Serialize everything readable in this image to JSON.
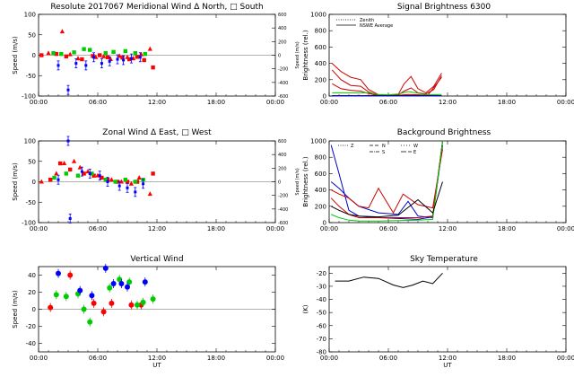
{
  "chart_data": [
    {
      "id": "meridional",
      "type": "scatter",
      "title": "Resolute  2017067    Meridional Wind   Δ North, □ South",
      "ylabel": "Speed (m/s)",
      "y2label": "Speed (m/s)",
      "xlim": [
        0,
        24
      ],
      "ylim": [
        -100,
        100
      ],
      "y2lim": [
        -600,
        600
      ],
      "x_ticks": [
        "00:00",
        "06:00",
        "12:00",
        "18:00",
        "00:00"
      ],
      "y_ticks": [
        -100,
        -50,
        0,
        50,
        100
      ],
      "y2_ticks": [
        -600,
        -400,
        -200,
        0,
        200,
        400,
        600
      ],
      "grid": false,
      "series": [
        {
          "name": "North",
          "color": "#ff0000",
          "marker": "triangle",
          "x": [
            1.0,
            2.4,
            3.2,
            4.0,
            5.8,
            6.6,
            7.3,
            8.2,
            9.0,
            9.6,
            10.4,
            11.3
          ],
          "y": [
            5,
            58,
            2,
            -8,
            -5,
            -3,
            -10,
            -2,
            -5,
            -8,
            2,
            15
          ]
        },
        {
          "name": "South",
          "color": "#ff0000",
          "marker": "square",
          "x": [
            0.3,
            1.8,
            2.8,
            4.4,
            5.5,
            6.2,
            7.0,
            8.5,
            9.2,
            10.0,
            10.7,
            11.6
          ],
          "y": [
            0,
            3,
            -3,
            -10,
            -2,
            0,
            -5,
            -6,
            -10,
            -4,
            -12,
            -30
          ]
        },
        {
          "name": "zenith-green",
          "color": "#00cc00",
          "marker": "square",
          "x": [
            1.5,
            2.3,
            3.6,
            4.6,
            5.2,
            6.8,
            7.6,
            8.8,
            9.8,
            10.8
          ],
          "y": [
            5,
            3,
            7,
            15,
            13,
            5,
            8,
            10,
            5,
            3
          ]
        },
        {
          "name": "model-blue",
          "color": "#0000ff",
          "marker": "errbar",
          "x": [
            2.0,
            3.0,
            3.8,
            4.8,
            5.6,
            6.4,
            7.2,
            8.0,
            8.6,
            9.4,
            10.3
          ],
          "y": [
            -25,
            -85,
            -20,
            -25,
            -5,
            -20,
            -15,
            -10,
            -12,
            -8,
            -5
          ]
        }
      ]
    },
    {
      "id": "signal",
      "type": "line",
      "title": "Signal Brightness        6300",
      "ylabel": "Brightness (rel.)",
      "xlim": [
        0,
        24
      ],
      "ylim": [
        0,
        1000
      ],
      "x_ticks": [
        "00:00",
        "06:00",
        "12:00",
        "18:00",
        "00:00"
      ],
      "y_ticks": [
        0,
        200,
        400,
        600,
        800,
        1000
      ],
      "grid": false,
      "legend": [
        "Zenith",
        "NSWE Average"
      ],
      "series": [
        {
          "name": "red-1",
          "color": "#cc0000",
          "x": [
            0.3,
            1.2,
            2.2,
            3.2,
            4.0,
            5.0,
            6.0,
            7.0,
            7.6,
            8.3,
            9.0,
            9.8,
            10.6,
            11.4
          ],
          "y": [
            400,
            300,
            230,
            200,
            80,
            15,
            10,
            20,
            150,
            240,
            90,
            40,
            120,
            280
          ]
        },
        {
          "name": "red-2",
          "color": "#cc0000",
          "x": [
            0.3,
            1.2,
            2.2,
            3.2,
            4.0,
            5.0,
            6.0,
            7.0,
            7.6,
            8.3,
            9.0,
            9.8,
            10.6,
            11.4
          ],
          "y": [
            320,
            200,
            130,
            120,
            50,
            10,
            8,
            15,
            60,
            100,
            40,
            25,
            80,
            250
          ]
        },
        {
          "name": "red-3",
          "color": "#cc0000",
          "x": [
            0.3,
            1.2,
            2.2,
            3.2,
            4.0,
            5.0,
            6.0,
            7.0,
            8.0,
            9.0,
            10.0,
            11.4
          ],
          "y": [
            150,
            90,
            70,
            60,
            30,
            5,
            5,
            10,
            20,
            15,
            10,
            230
          ]
        },
        {
          "name": "green",
          "color": "#00cc00",
          "x": [
            0.3,
            2.0,
            4.0,
            5.0,
            6.0,
            7.0,
            8.0,
            9.0,
            10.0,
            11.4
          ],
          "y": [
            40,
            40,
            40,
            20,
            15,
            25,
            55,
            35,
            15,
            20
          ]
        },
        {
          "name": "blue",
          "color": "#0000cc",
          "x": [
            0.3,
            3.0,
            5.0,
            7.0,
            9.0,
            11.4
          ],
          "y": [
            5,
            5,
            5,
            5,
            5,
            5
          ]
        }
      ]
    },
    {
      "id": "zonal",
      "type": "scatter",
      "title": "Zonal Wind      Δ East, □ West",
      "ylabel": "Speed (m/s)",
      "y2label": "Speed (m/s)",
      "xlim": [
        0,
        24
      ],
      "ylim": [
        -100,
        100
      ],
      "y2lim": [
        -600,
        600
      ],
      "x_ticks": [
        "00:00",
        "06:00",
        "12:00",
        "18:00",
        "00:00"
      ],
      "y_ticks": [
        -100,
        -50,
        0,
        50,
        100
      ],
      "y2_ticks": [
        -600,
        -400,
        -200,
        0,
        200,
        400,
        600
      ],
      "grid": false,
      "series": [
        {
          "name": "East",
          "color": "#ff0000",
          "marker": "triangle",
          "x": [
            0.3,
            1.8,
            2.6,
            3.6,
            4.2,
            5.0,
            6.0,
            7.4,
            8.4,
            9.4,
            10.2,
            11.3
          ],
          "y": [
            0,
            20,
            45,
            50,
            35,
            25,
            15,
            5,
            0,
            -5,
            10,
            -30
          ]
        },
        {
          "name": "West",
          "color": "#ff0000",
          "marker": "square",
          "x": [
            1.2,
            2.2,
            3.2,
            4.6,
            5.6,
            6.4,
            7.0,
            8.0,
            9.0,
            10.0,
            11.6
          ],
          "y": [
            5,
            45,
            30,
            20,
            15,
            10,
            5,
            0,
            0,
            0,
            20
          ]
        },
        {
          "name": "zenith-green",
          "color": "#00cc00",
          "marker": "square",
          "x": [
            1.6,
            2.8,
            4.0,
            5.4,
            6.8,
            7.8,
            8.8,
            9.8,
            10.6
          ],
          "y": [
            10,
            20,
            15,
            20,
            5,
            0,
            5,
            0,
            5
          ]
        },
        {
          "name": "model-blue",
          "color": "#0000ff",
          "marker": "errbar",
          "x": [
            2.0,
            3.0,
            3.2,
            4.4,
            5.2,
            6.2,
            7.0,
            8.2,
            9.0,
            9.8,
            10.6
          ],
          "y": [
            5,
            100,
            -90,
            25,
            20,
            15,
            0,
            -10,
            -15,
            -25,
            -5
          ]
        }
      ]
    },
    {
      "id": "background",
      "type": "line",
      "title": "Background Brightness",
      "ylabel": "Brightness (rel.)",
      "xlim": [
        0,
        24
      ],
      "ylim": [
        0,
        1000
      ],
      "x_ticks": [
        "00:00",
        "06:00",
        "12:00",
        "18:00",
        "00:00"
      ],
      "y_ticks": [
        0,
        200,
        400,
        600,
        800,
        1000
      ],
      "grid": false,
      "legend": [
        "Z",
        "N",
        "S",
        "W",
        "E"
      ],
      "series": [
        {
          "name": "blue-solid",
          "color": "#0000cc",
          "x": [
            0.2,
            1.0,
            2.0,
            3.0,
            5.0,
            7.0,
            9.0,
            10.5,
            11.5
          ],
          "y": [
            950,
            600,
            150,
            80,
            60,
            50,
            40,
            70,
            1000
          ]
        },
        {
          "name": "blue-dashed",
          "color": "#0000cc",
          "x": [
            0.2,
            1.0,
            2.0,
            3.0,
            5.0,
            7.0,
            8.0,
            9.0,
            10.5,
            11.5
          ],
          "y": [
            500,
            420,
            300,
            200,
            120,
            100,
            260,
            80,
            60,
            950
          ]
        },
        {
          "name": "red-solid",
          "color": "#cc0000",
          "x": [
            0.2,
            1.0,
            2.0,
            3.0,
            5.0,
            7.0,
            9.0,
            10.5,
            11.5
          ],
          "y": [
            300,
            200,
            100,
            60,
            60,
            60,
            60,
            80,
            1000
          ]
        },
        {
          "name": "red-dashed",
          "color": "#cc0000",
          "x": [
            0.2,
            1.0,
            2.0,
            3.0,
            4.0,
            5.0,
            6.5,
            7.5,
            9.0,
            10.5,
            11.5
          ],
          "y": [
            400,
            350,
            300,
            200,
            180,
            420,
            120,
            350,
            220,
            180,
            900
          ]
        },
        {
          "name": "green-solid",
          "color": "#00cc00",
          "x": [
            0.2,
            1.0,
            2.0,
            3.0,
            5.0,
            7.0,
            9.0,
            10.5,
            11.5
          ],
          "y": [
            100,
            60,
            30,
            20,
            20,
            25,
            30,
            40,
            1000
          ]
        },
        {
          "name": "black",
          "color": "#000000",
          "x": [
            0.2,
            1.0,
            2.0,
            3.0,
            5.0,
            7.0,
            9.0,
            10.5,
            11.5
          ],
          "y": [
            200,
            150,
            100,
            80,
            70,
            90,
            280,
            120,
            500
          ]
        }
      ]
    },
    {
      "id": "vertical",
      "type": "scatter",
      "title": "Vertical Wind",
      "ylabel": "Speed (m/s)",
      "xlabel": "UT",
      "xlim": [
        0,
        24
      ],
      "ylim": [
        -50,
        50
      ],
      "x_ticks": [
        "00:00",
        "06:00",
        "12:00",
        "18:00",
        "00:00"
      ],
      "y_ticks": [
        -40,
        -20,
        0,
        20,
        40
      ],
      "grid": false,
      "series": [
        {
          "name": "red",
          "color": "#ff0000",
          "marker": "circle",
          "x": [
            1.2,
            3.2,
            5.6,
            6.6,
            7.4,
            9.4,
            10.4
          ],
          "y": [
            2,
            40,
            7,
            -3,
            7,
            5,
            5
          ]
        },
        {
          "name": "green",
          "color": "#00cc00",
          "marker": "circle",
          "x": [
            1.8,
            2.8,
            4.0,
            4.6,
            5.2,
            7.2,
            8.2,
            9.2,
            10.0,
            10.6,
            11.6
          ],
          "y": [
            17,
            15,
            18,
            0,
            -15,
            25,
            35,
            32,
            5,
            8,
            12
          ]
        },
        {
          "name": "blue",
          "color": "#0000ff",
          "marker": "circle",
          "x": [
            2.0,
            4.2,
            5.4,
            6.8,
            7.6,
            8.4,
            9.0,
            10.8
          ],
          "y": [
            42,
            22,
            16,
            48,
            30,
            30,
            26,
            32
          ]
        }
      ]
    },
    {
      "id": "sky",
      "type": "line",
      "title": "Sky Temperature",
      "ylabel": "(K)",
      "xlabel": "UT",
      "xlim": [
        0,
        24
      ],
      "ylim": [
        -80,
        -15
      ],
      "x_ticks": [
        "00:00",
        "06:00",
        "12:00",
        "18:00",
        "00:00"
      ],
      "y_ticks": [
        -80,
        -70,
        -60,
        -50,
        -40,
        -30,
        -20
      ],
      "grid": false,
      "series": [
        {
          "name": "sky",
          "color": "#000000",
          "x": [
            0.6,
            2.0,
            3.5,
            5.0,
            6.5,
            7.5,
            8.5,
            9.5,
            10.5,
            11.5
          ],
          "y": [
            -26,
            -26,
            -23,
            -24,
            -29,
            -31,
            -29,
            -26,
            -28,
            -20
          ]
        }
      ]
    }
  ]
}
